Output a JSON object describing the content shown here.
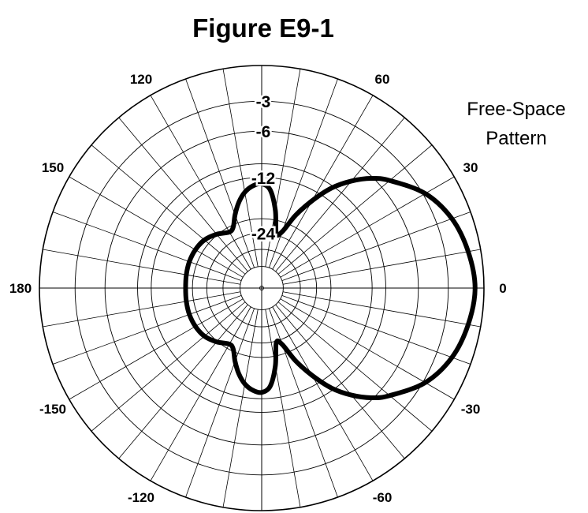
{
  "chart_data": {
    "type": "polar-line",
    "title": "Figure E9-1",
    "annotation": [
      "Free-Space",
      "Pattern"
    ],
    "angle_unit": "degrees",
    "angle_direction": "counterclockwise",
    "angle_zero": "right",
    "radial_scale": "ARRL log-periodic dB (0 dB at outer circle)",
    "grid": true,
    "angle_grid_step": 10,
    "angle_tick_labels": [
      {
        "angle": 0,
        "label": "0"
      },
      {
        "angle": 30,
        "label": "30"
      },
      {
        "angle": 60,
        "label": "60"
      },
      {
        "angle": 120,
        "label": "120"
      },
      {
        "angle": 150,
        "label": "150"
      },
      {
        "angle": 180,
        "label": "180"
      },
      {
        "angle": -150,
        "label": "-150"
      },
      {
        "angle": -120,
        "label": "-120"
      },
      {
        "angle": -60,
        "label": "-60"
      },
      {
        "angle": -30,
        "label": "-30"
      }
    ],
    "radial_rings_db": [
      0,
      -3,
      -6,
      -10,
      -12,
      -20,
      -24,
      -30,
      -40
    ],
    "radial_tick_labels": [
      {
        "db": -3,
        "label": "-3"
      },
      {
        "db": -6,
        "label": "-6"
      },
      {
        "db": -12,
        "label": "-12"
      },
      {
        "db": -24,
        "label": "-24"
      }
    ],
    "series": [
      {
        "angle": [
          0,
          10,
          20,
          30,
          40,
          45,
          50,
          55,
          60,
          65,
          70,
          75,
          80,
          85,
          90,
          95,
          100,
          105,
          110,
          115,
          120,
          130,
          140,
          150,
          160,
          170,
          180,
          -170,
          -160,
          -150,
          -140,
          -130,
          -120,
          -115,
          -110,
          -105,
          -100,
          -95,
          -90,
          -85,
          -80,
          -75,
          -70,
          -65,
          -60,
          -55,
          -50,
          -45,
          -40,
          -30,
          -20,
          -10
        ],
        "gain_db": [
          -0.7,
          -1.0,
          -1.6,
          -2.8,
          -4.9,
          -6.2,
          -8.0,
          -10.3,
          -13.6,
          -17.5,
          -22.5,
          -23.5,
          -17.8,
          -14.0,
          -13.0,
          -13.3,
          -14.2,
          -15.8,
          -18.0,
          -20.5,
          -21.2,
          -19.8,
          -18.7,
          -18.3,
          -18.2,
          -18.3,
          -18.4,
          -18.3,
          -18.2,
          -18.3,
          -18.7,
          -19.8,
          -21.2,
          -20.5,
          -18.0,
          -15.8,
          -14.2,
          -13.3,
          -13.0,
          -14.0,
          -17.8,
          -23.5,
          -22.5,
          -17.5,
          -13.6,
          -10.3,
          -8.0,
          -6.2,
          -4.9,
          -2.8,
          -1.6,
          -1.0
        ]
      }
    ]
  }
}
